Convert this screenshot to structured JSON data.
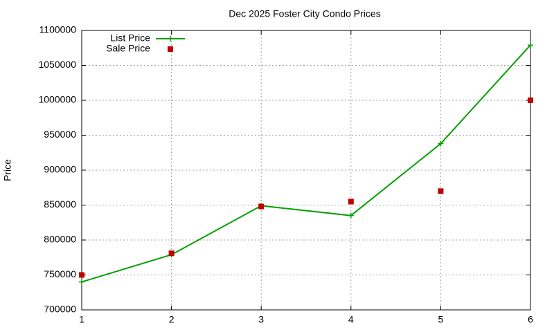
{
  "chart_data": {
    "type": "line",
    "title": "Dec 2025 Foster City Condo Prices",
    "y_label": "Price",
    "x": [
      1,
      2,
      3,
      4,
      5,
      6
    ],
    "series": [
      {
        "name": "List Price",
        "color": "#00a000",
        "style": "linespoints",
        "values": [
          740000,
          779000,
          849000,
          835000,
          938000,
          1079000
        ]
      },
      {
        "name": "Sale Price",
        "color": "#c00000",
        "style": "points",
        "values": [
          750000,
          781000,
          848000,
          855000,
          870000,
          1000000
        ]
      }
    ],
    "xlim": [
      1,
      6
    ],
    "xticks": [
      1,
      2,
      3,
      4,
      5,
      6
    ],
    "ylim": [
      700000,
      1100000
    ],
    "yticks": [
      700000,
      750000,
      800000,
      850000,
      900000,
      950000,
      1000000,
      1050000,
      1100000
    ],
    "grid": true,
    "legend": "top-left"
  }
}
